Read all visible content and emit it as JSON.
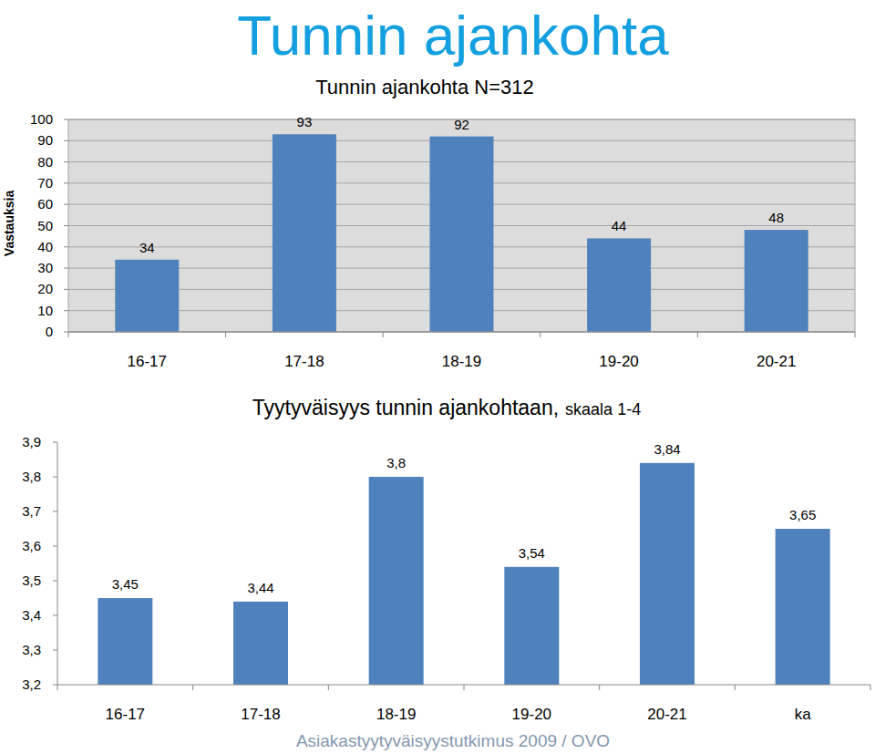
{
  "page_title": "Tunnin ajankohta",
  "source": "Asiakastyytyväisyystutkimus 2009 / OVO",
  "chart_data": [
    {
      "type": "bar",
      "title": "Tunnin ajankohta N=312",
      "y_label": "Vastauksia",
      "categories": [
        "16-17",
        "17-18",
        "18-19",
        "19-20",
        "20-21"
      ],
      "values": [
        34,
        93,
        92,
        44,
        48
      ],
      "color": "#4f81bd",
      "ylim": [
        0,
        100
      ],
      "yticks": [
        0,
        10,
        20,
        30,
        40,
        50,
        60,
        70,
        80,
        90,
        100
      ],
      "grid": true,
      "data_labels": true
    },
    {
      "type": "bar",
      "title": "Tyytyväisyys tunnin ajankohtaan,",
      "subtitle": "skaala 1-4",
      "categories": [
        "16-17",
        "17-18",
        "18-19",
        "19-20",
        "20-21",
        "ka"
      ],
      "values": [
        3.45,
        3.44,
        3.8,
        3.54,
        3.84,
        3.65
      ],
      "value_labels": [
        "3,45",
        "3,44",
        "3,8",
        "3,54",
        "3,84",
        "3,65"
      ],
      "color": "#4f81bd",
      "ylim": [
        3.2,
        3.9
      ],
      "yticks": [
        {
          "value": 3.2,
          "label": "3,2"
        },
        {
          "value": 3.3,
          "label": "3,3"
        },
        {
          "value": 3.4,
          "label": "3,4"
        },
        {
          "value": 3.5,
          "label": "3,5"
        },
        {
          "value": 3.6,
          "label": "3,6"
        },
        {
          "value": 3.7,
          "label": "3,7"
        },
        {
          "value": 3.8,
          "label": "3,8"
        },
        {
          "value": 3.9,
          "label": "3,9"
        }
      ],
      "grid": false,
      "data_labels": true
    }
  ]
}
